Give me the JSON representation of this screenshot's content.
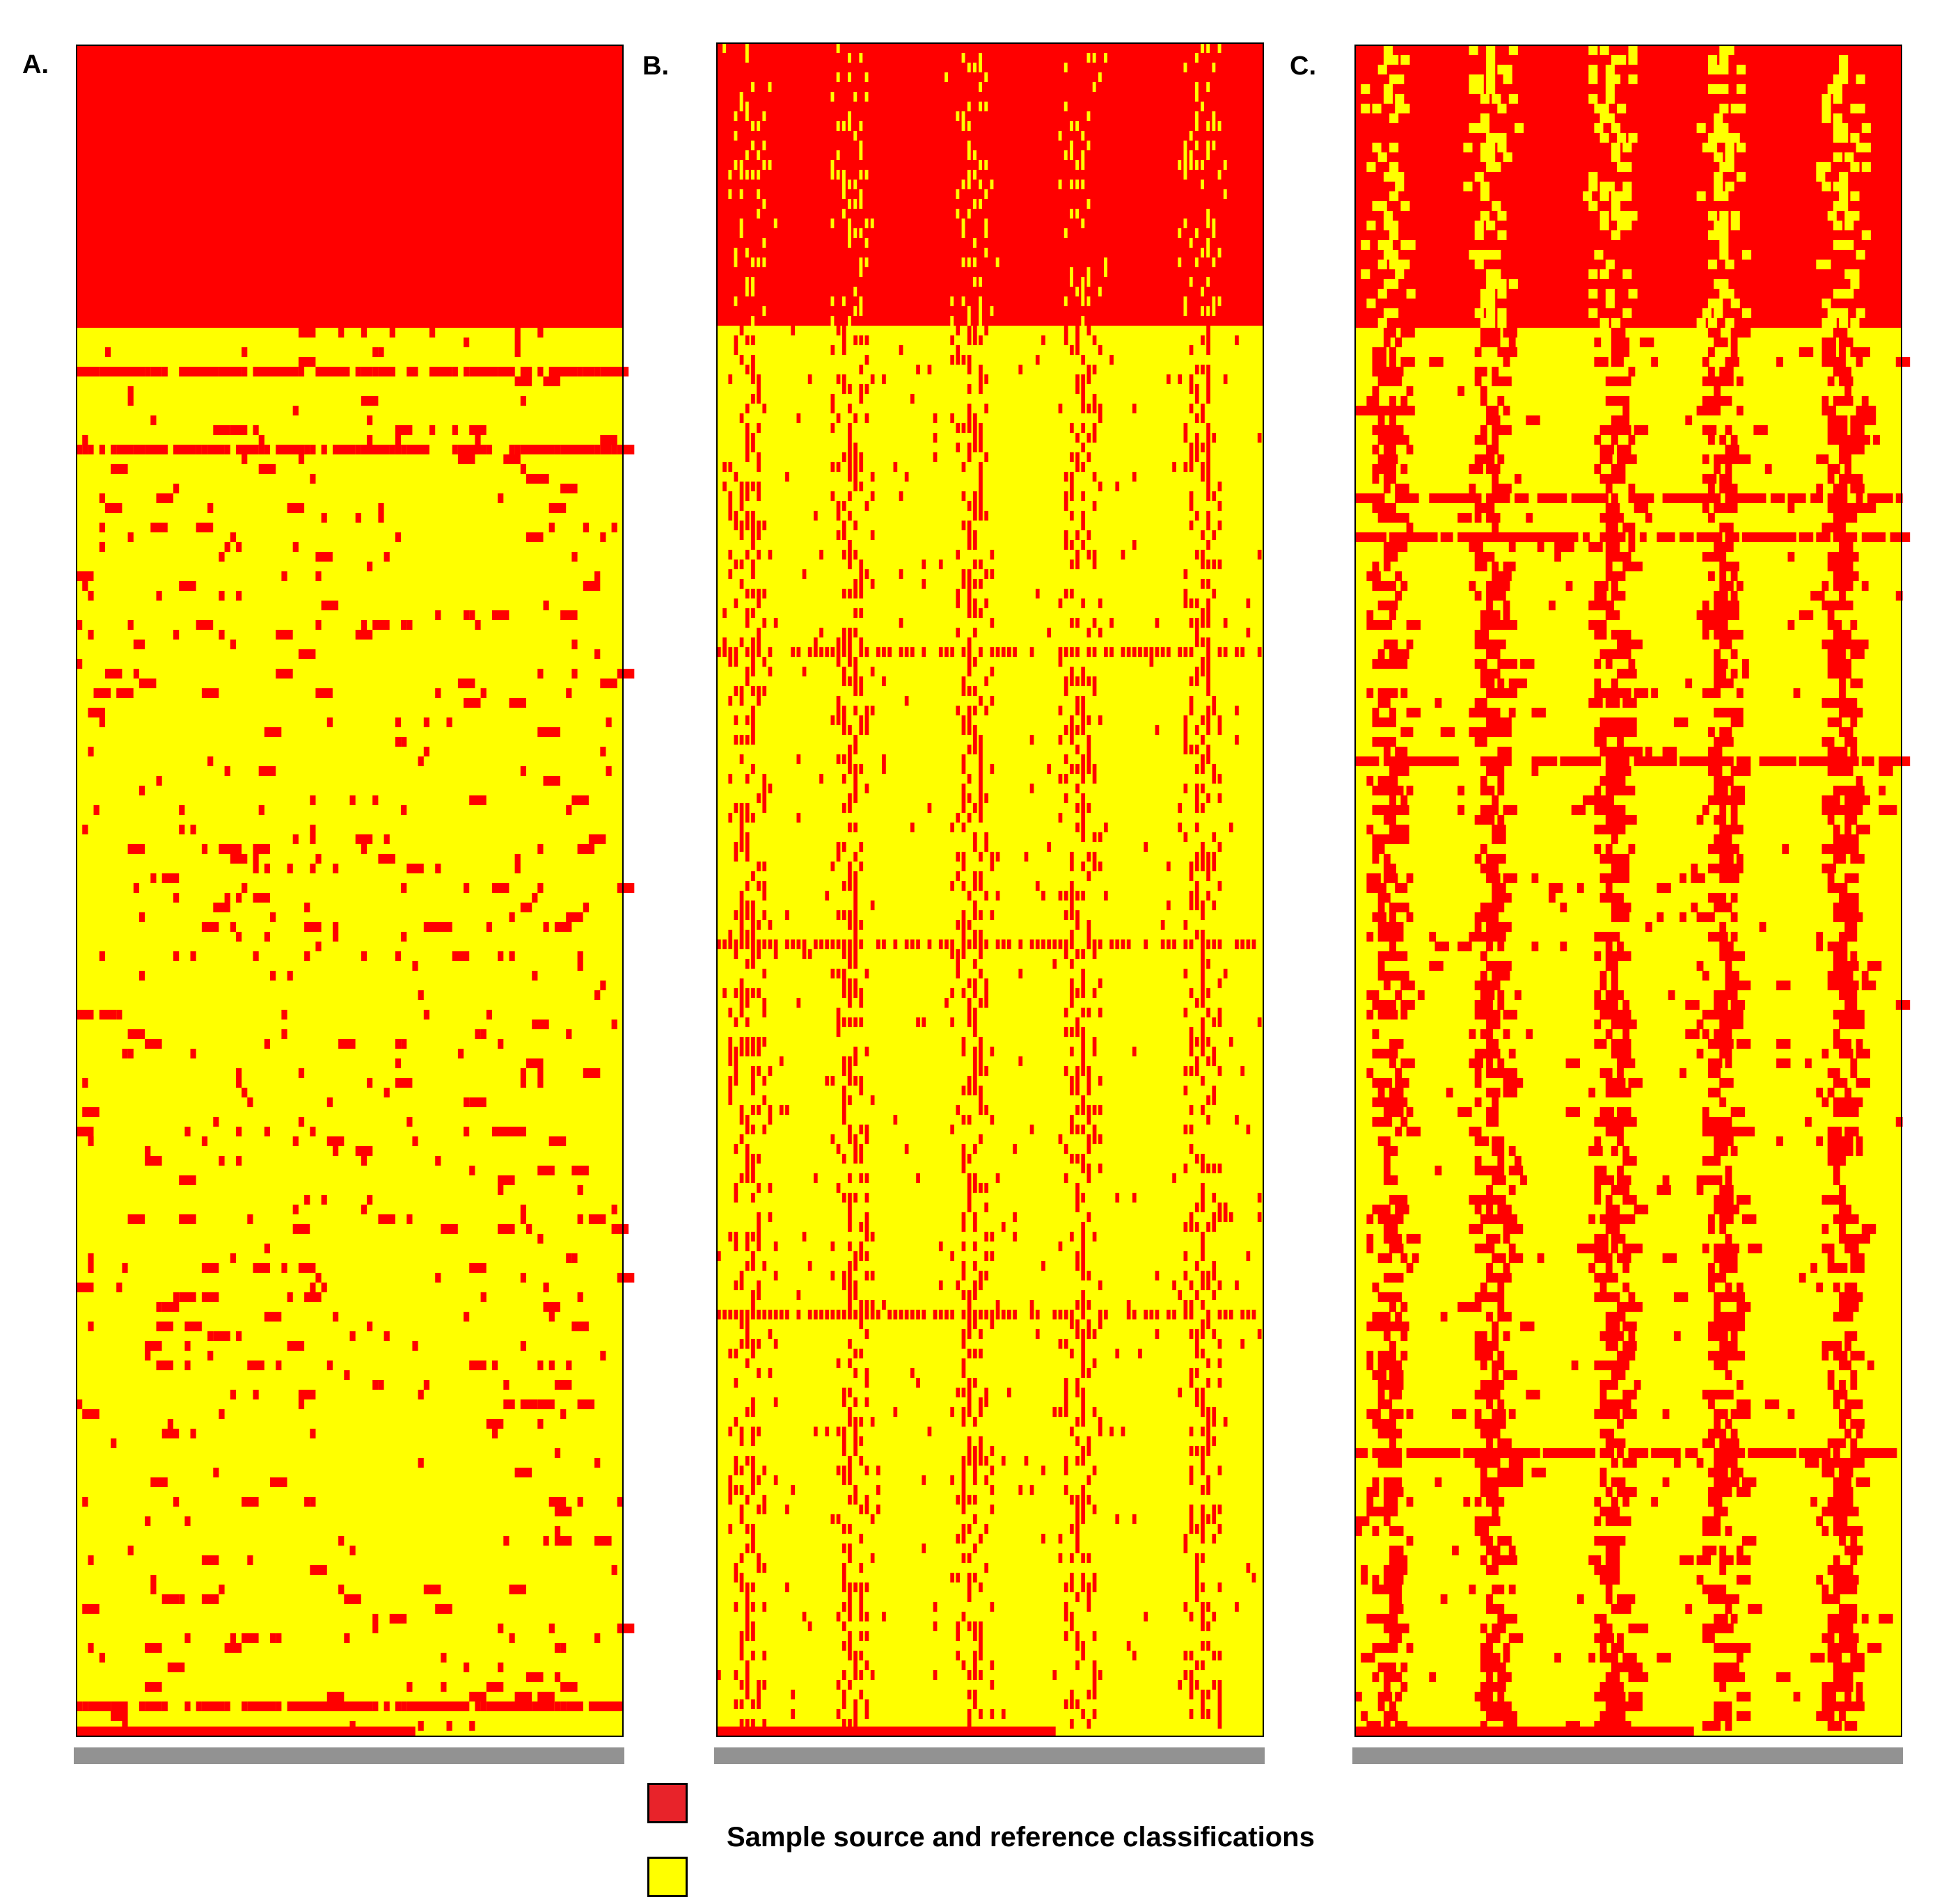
{
  "colors": {
    "red": "#ff0000",
    "yellow": "#ffff00",
    "legend_red": "#e8232a",
    "legend_yellow": "#ffff00",
    "tick_label_gray": "#7f7f7f"
  },
  "chart_data": [
    {
      "type": "heatmap",
      "panel": "A.",
      "cell_values": [
        "red",
        "yellow"
      ],
      "top_block": "red",
      "top_block_fraction": 0.167,
      "texture": "sparse"
    },
    {
      "type": "heatmap",
      "panel": "B.",
      "cell_values": [
        "red",
        "yellow"
      ],
      "top_block": "red",
      "top_block_fraction": 0.167,
      "texture": "columns"
    },
    {
      "type": "heatmap",
      "panel": "C.",
      "cell_values": [
        "red",
        "yellow"
      ],
      "top_block": "red",
      "top_block_fraction": 0.167,
      "texture": "blocky-columns"
    }
  ],
  "legend": {
    "label": "Sample source and reference classifications",
    "entries": [
      "red",
      "yellow"
    ]
  }
}
